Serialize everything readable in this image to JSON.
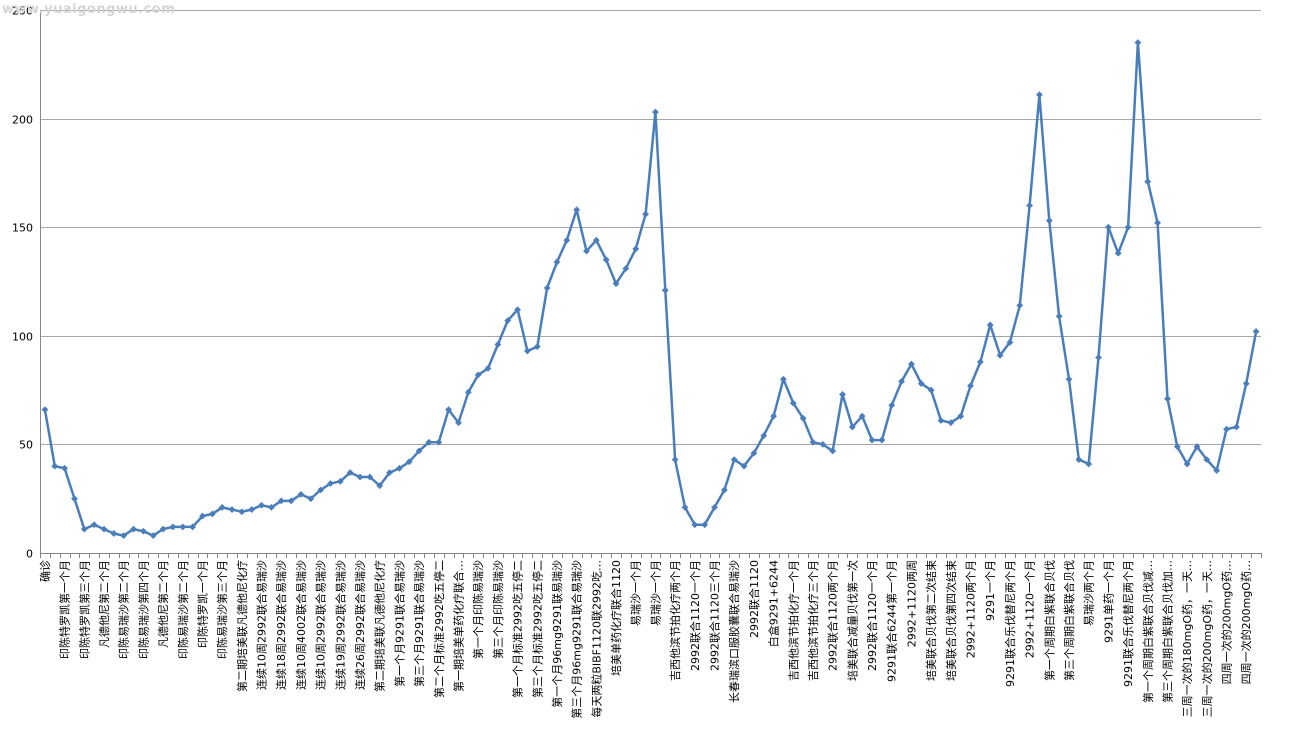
{
  "watermark": "www.yuaigongwu.com",
  "colors": {
    "series": "#4a7ebb",
    "grid": "#a6a6a6",
    "axis": "#868686",
    "text": "#000000"
  },
  "chart_data": {
    "type": "line",
    "title": "",
    "xlabel": "",
    "ylabel": "",
    "ylim": [
      0,
      250
    ],
    "yticks": [
      0,
      50,
      100,
      150,
      200,
      250
    ],
    "grid": true,
    "legend": "none",
    "markers": "diamond",
    "categories": [
      "确诊",
      "",
      "印陈特罗凯第一个月",
      "",
      "印陈特罗凯第三个月",
      "",
      "凡德他尼第二个月",
      "",
      "印陈易瑞沙第二个月",
      "",
      "印陈易瑞沙第四个月",
      "",
      "凡德他尼第二个月",
      "",
      "印陈易瑞沙第二个月",
      "",
      "印陈特罗凯一个月",
      "",
      "印陈易瑞沙第三个月",
      "",
      "第二期培美联凡德他尼化疗",
      "",
      "连续10周2992联合易瑞沙",
      "",
      "连续18周2992联合易瑞沙",
      "",
      "连续10周4002联合易瑞沙",
      "",
      "连续10周2992联合易瑞沙",
      "",
      "连续19周2992联合易瑞沙",
      "",
      "连续26周2992联合易瑞沙",
      "",
      "第二期培美联凡德他尼化疗",
      "",
      "第一个月9291联合易瑞沙",
      "",
      "第三个月9291联合易瑞沙",
      "",
      "第二个月标准2992吃五停二",
      "",
      "第一期培美单药化疗联合…",
      "",
      "第一个月印陈易瑞沙",
      "",
      "第三个月印陈易瑞沙",
      "",
      "第一个月标准2992吃五停二",
      "",
      "第三个月标准2992吃五停二",
      "",
      "第一个月96mg9291联易瑞沙",
      "",
      "第三个月96mg9291联合易瑞沙",
      "",
      "每天两粒BIBF1120联2992吃…",
      "",
      "培美单药化疗联合1120",
      "",
      "易瑞沙一个月",
      "",
      "易瑞沙一个月",
      "",
      "吉西他滨节拍化疗两个月",
      "",
      "2992联合1120一个月",
      "",
      "2992联合1120三个月",
      "",
      "长春瑞滨口服胶囊联合易瑞沙",
      "",
      "2992联合1120",
      "",
      "白盒9291+6244",
      "",
      "吉西他滨节拍化疗一个月",
      "",
      "吉西他滨节拍化疗三个月",
      "",
      "2992联合1120两个月",
      "",
      "培美联合减量贝伐第一次",
      "",
      "2992联合1120一个月",
      "",
      "9291联合6244第一个月",
      "",
      "2992+1120两周",
      "",
      "培美联合贝伐第二次结束",
      "",
      "培美联合贝伐第四次结束",
      "",
      "2992+1120两个月",
      "",
      "9291一个月",
      "",
      "9291联合乐伐替尼两个月",
      "",
      "2992+1120一个月",
      "",
      "第一个周期白紫联合贝伐",
      "",
      "第三个周期白紫联合贝伐",
      "",
      "易瑞沙两个月",
      "",
      "9291单药一个月",
      "",
      "9291联合乐伐替尼两个月",
      "",
      "第一个周期白紫联合贝伐减…",
      "",
      "第三个周期白紫联合贝伐加…",
      "",
      "三周一次的180mgO药，一天…",
      "",
      "三周一次的200mgO药，一天…",
      "",
      "四周一次的200mgO药…",
      "",
      "四周一次的200mgO药…",
      ""
    ],
    "series": [
      {
        "name": "",
        "color": "#4a7ebb",
        "values": [
          66,
          40,
          39,
          25,
          11,
          13,
          11,
          9,
          8,
          11,
          10,
          8,
          11,
          12,
          12,
          12,
          17,
          18,
          21,
          20,
          19,
          20,
          22,
          21,
          24,
          24,
          27,
          25,
          29,
          32,
          33,
          37,
          35,
          35,
          31,
          37,
          39,
          42,
          47,
          51,
          51,
          66,
          60,
          74,
          82,
          85,
          96,
          107,
          112,
          93,
          95,
          122,
          134,
          144,
          158,
          139,
          144,
          135,
          124,
          131,
          140,
          156,
          203,
          121,
          43,
          21,
          13,
          13,
          21,
          29,
          43,
          40,
          46,
          54,
          63,
          80,
          69,
          62,
          51,
          50,
          47,
          73,
          58,
          63,
          52,
          52,
          68,
          79,
          87,
          78,
          75,
          61,
          60,
          63,
          77,
          88,
          105,
          91,
          97,
          114,
          160,
          211,
          153,
          109,
          80,
          43,
          41,
          90,
          150,
          138,
          150,
          235,
          171,
          152,
          71,
          49,
          41,
          49,
          43,
          38,
          57,
          58,
          78,
          102
        ]
      }
    ]
  }
}
